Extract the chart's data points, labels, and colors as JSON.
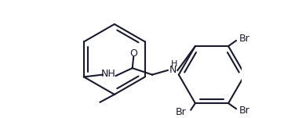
{
  "background": "#ffffff",
  "line_color": "#1a1a2e",
  "line_width": 1.5,
  "font_size": 9,
  "figsize": [
    3.62,
    1.51
  ],
  "dpi": 100,
  "atoms": {
    "O": {
      "label": "O",
      "color": "#000000"
    },
    "N": {
      "label": "N",
      "color": "#000000"
    },
    "NH": {
      "label": "NH",
      "color": "#000000"
    },
    "H": {
      "label": "H",
      "color": "#000000"
    },
    "Br": {
      "label": "Br",
      "color": "#000000"
    },
    "C": {
      "label": "",
      "color": "#000000"
    }
  }
}
